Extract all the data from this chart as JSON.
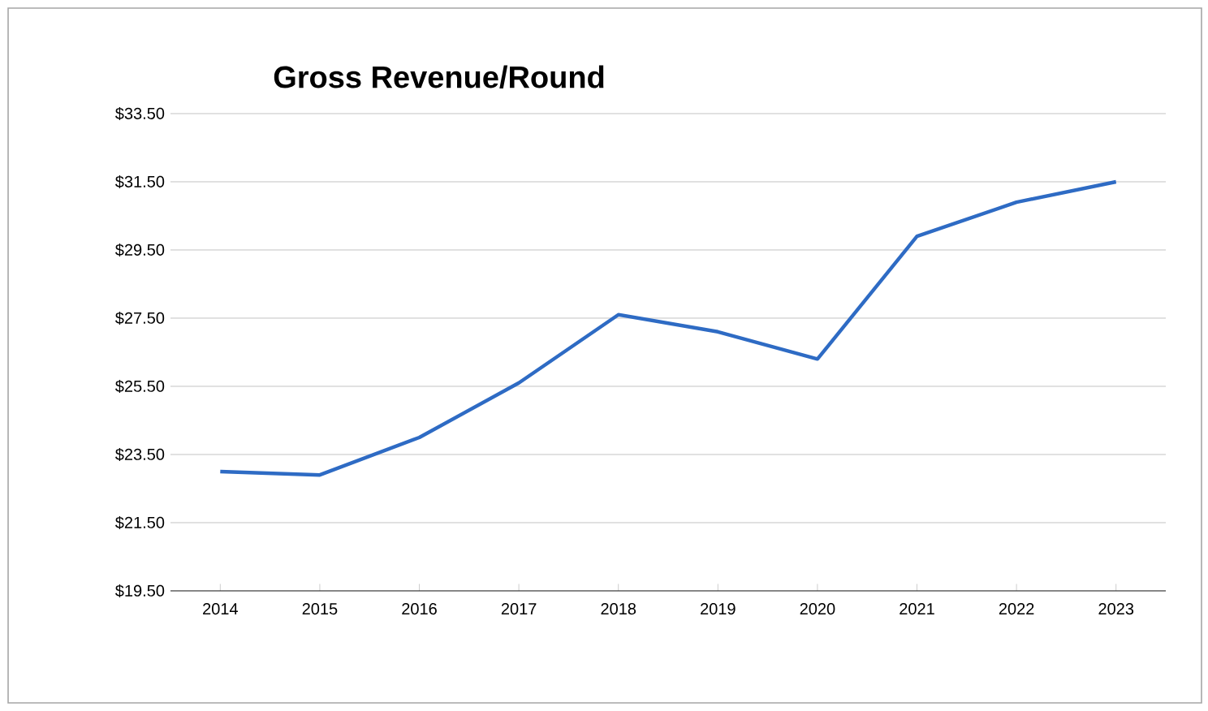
{
  "chart_data": {
    "type": "line",
    "title": "Gross Revenue/Round",
    "categories": [
      "2014",
      "2015",
      "2016",
      "2017",
      "2018",
      "2019",
      "2020",
      "2021",
      "2022",
      "2023"
    ],
    "series": [
      {
        "color": "#2e6bc4",
        "values": [
          23.0,
          22.9,
          24.0,
          25.6,
          27.6,
          27.1,
          26.3,
          29.9,
          30.9,
          31.5
        ]
      }
    ],
    "ylim": [
      19.5,
      33.5
    ],
    "yticks": [
      {
        "value": 19.5,
        "label": "$19.50"
      },
      {
        "value": 21.5,
        "label": "$21.50"
      },
      {
        "value": 23.5,
        "label": "$23.50"
      },
      {
        "value": 25.5,
        "label": "$25.50"
      },
      {
        "value": 27.5,
        "label": "$27.50"
      },
      {
        "value": 29.5,
        "label": "$29.50"
      },
      {
        "value": 31.5,
        "label": "$31.50"
      },
      {
        "value": 33.5,
        "label": "$33.50"
      }
    ],
    "grid": "y",
    "marker": "none",
    "line_style": "solid"
  }
}
